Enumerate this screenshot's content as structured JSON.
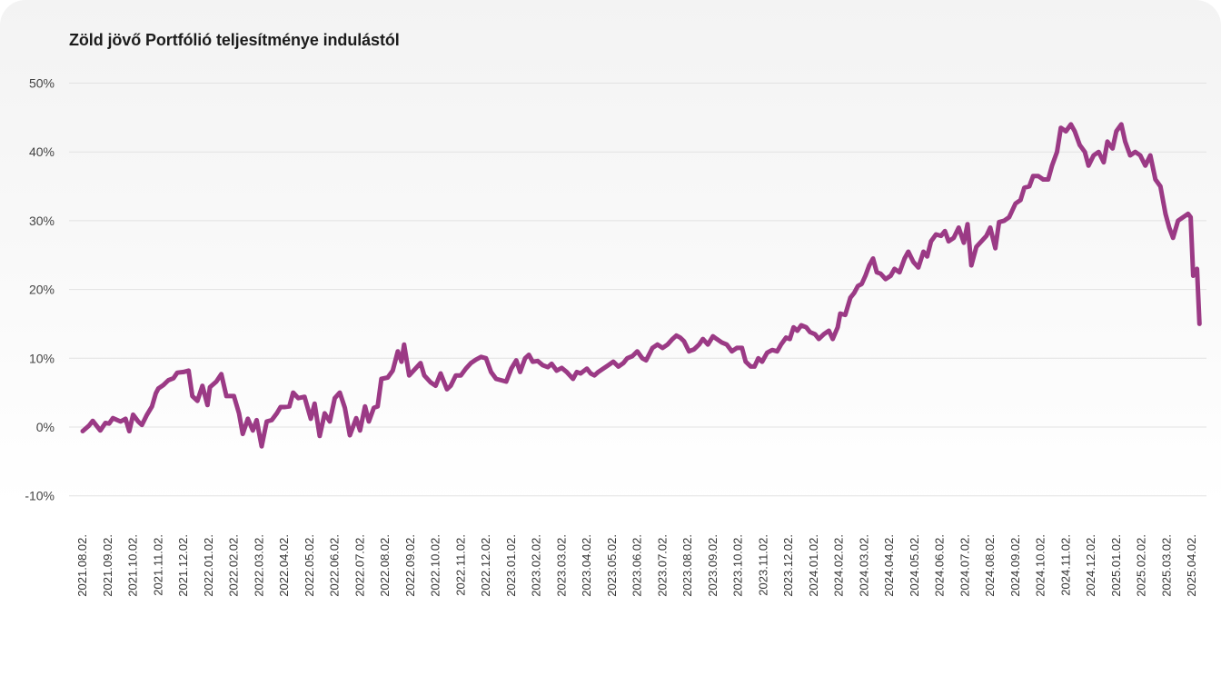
{
  "chart_data": {
    "type": "line",
    "title": "Zöld jövő Portfólió teljesítménye indulástól",
    "xlabel": "",
    "ylabel": "",
    "ylim": [
      -10,
      50
    ],
    "y_ticks": [
      "-10%",
      "0%",
      "10%",
      "20%",
      "30%",
      "40%",
      "50%"
    ],
    "y_tick_values": [
      -10,
      0,
      10,
      20,
      30,
      40,
      50
    ],
    "x_ticks": [
      "2021.08.02.",
      "2021.09.02.",
      "2021.10.02.",
      "2021.11.02.",
      "2021.12.02.",
      "2022.01.02.",
      "2022.02.02.",
      "2022.03.02.",
      "2022.04.02.",
      "2022.05.02.",
      "2022.06.02.",
      "2022.07.02.",
      "2022.08.02.",
      "2022.09.02.",
      "2022.10.02.",
      "2022.11.02.",
      "2022.12.02.",
      "2023.01.02.",
      "2023.02.02.",
      "2023.03.02.",
      "2023.04.02.",
      "2023.05.02.",
      "2023.06.02.",
      "2023.07.02.",
      "2023.08.02.",
      "2023.09.02.",
      "2023.10.02.",
      "2023.11.02.",
      "2023.12.02.",
      "2024.01.02.",
      "2024.02.02.",
      "2024.03.02.",
      "2024.04.02.",
      "2024.05.02.",
      "2024.06.02.",
      "2024.07.02.",
      "2024.08.02.",
      "2024.09.02.",
      "2024.10.02.",
      "2024.11.02.",
      "2024.12.02.",
      "2025.01.02.",
      "2025.02.02.",
      "2025.03.02.",
      "2025.04.02."
    ],
    "grid": true,
    "line_color": "#9b3a85",
    "series": [
      {
        "values": [
          [
            0.0,
            -0.6
          ],
          [
            0.25,
            0.2
          ],
          [
            0.4,
            0.9
          ],
          [
            0.7,
            -0.5
          ],
          [
            0.9,
            0.6
          ],
          [
            1.05,
            0.5
          ],
          [
            1.2,
            1.3
          ],
          [
            1.5,
            0.8
          ],
          [
            1.7,
            1.2
          ],
          [
            1.85,
            -0.6
          ],
          [
            2.0,
            1.8
          ],
          [
            2.2,
            0.8
          ],
          [
            2.35,
            0.3
          ],
          [
            2.55,
            1.8
          ],
          [
            2.75,
            3.0
          ],
          [
            2.9,
            4.9
          ],
          [
            3.0,
            5.6
          ],
          [
            3.2,
            6.1
          ],
          [
            3.4,
            6.8
          ],
          [
            3.6,
            7.1
          ],
          [
            3.75,
            7.9
          ],
          [
            4.0,
            8.0
          ],
          [
            4.2,
            8.2
          ],
          [
            4.35,
            4.5
          ],
          [
            4.55,
            3.8
          ],
          [
            4.75,
            6.0
          ],
          [
            4.95,
            3.2
          ],
          [
            5.05,
            5.8
          ],
          [
            5.3,
            6.6
          ],
          [
            5.5,
            7.7
          ],
          [
            5.7,
            4.5
          ],
          [
            6.0,
            4.5
          ],
          [
            6.2,
            2.0
          ],
          [
            6.35,
            -1.0
          ],
          [
            6.55,
            1.2
          ],
          [
            6.75,
            -0.5
          ],
          [
            6.9,
            1.0
          ],
          [
            7.1,
            -2.8
          ],
          [
            7.3,
            0.8
          ],
          [
            7.5,
            1.0
          ],
          [
            7.7,
            2.0
          ],
          [
            7.85,
            2.9
          ],
          [
            8.0,
            2.9
          ],
          [
            8.2,
            3.0
          ],
          [
            8.35,
            5.0
          ],
          [
            8.55,
            4.2
          ],
          [
            8.8,
            4.4
          ],
          [
            9.05,
            1.2
          ],
          [
            9.2,
            3.4
          ],
          [
            9.4,
            -1.3
          ],
          [
            9.6,
            2.0
          ],
          [
            9.8,
            0.8
          ],
          [
            10.0,
            4.2
          ],
          [
            10.2,
            5.0
          ],
          [
            10.4,
            2.8
          ],
          [
            10.6,
            -1.2
          ],
          [
            10.85,
            1.3
          ],
          [
            11.0,
            -0.5
          ],
          [
            11.2,
            3.0
          ],
          [
            11.35,
            0.8
          ],
          [
            11.55,
            2.8
          ],
          [
            11.7,
            3.0
          ],
          [
            11.85,
            7.0
          ],
          [
            12.1,
            7.2
          ],
          [
            12.3,
            8.2
          ],
          [
            12.5,
            11.0
          ],
          [
            12.65,
            9.5
          ],
          [
            12.75,
            12.0
          ],
          [
            12.95,
            7.5
          ],
          [
            13.2,
            8.5
          ],
          [
            13.4,
            9.3
          ],
          [
            13.55,
            7.5
          ],
          [
            13.8,
            6.5
          ],
          [
            14.0,
            6.0
          ],
          [
            14.2,
            7.8
          ],
          [
            14.45,
            5.5
          ],
          [
            14.6,
            6.0
          ],
          [
            14.8,
            7.5
          ],
          [
            15.0,
            7.5
          ],
          [
            15.2,
            8.5
          ],
          [
            15.4,
            9.3
          ],
          [
            15.6,
            9.8
          ],
          [
            15.8,
            10.2
          ],
          [
            16.0,
            10.0
          ],
          [
            16.2,
            8.0
          ],
          [
            16.4,
            7.0
          ],
          [
            16.6,
            6.8
          ],
          [
            16.8,
            6.6
          ],
          [
            17.0,
            8.5
          ],
          [
            17.2,
            9.7
          ],
          [
            17.35,
            8.0
          ],
          [
            17.55,
            10.0
          ],
          [
            17.7,
            10.5
          ],
          [
            17.85,
            9.5
          ],
          [
            18.05,
            9.6
          ],
          [
            18.25,
            9.0
          ],
          [
            18.45,
            8.7
          ],
          [
            18.6,
            9.2
          ],
          [
            18.8,
            8.2
          ],
          [
            19.0,
            8.6
          ],
          [
            19.2,
            8.0
          ],
          [
            19.45,
            7.0
          ],
          [
            19.6,
            8.0
          ],
          [
            19.75,
            7.8
          ],
          [
            20.0,
            8.5
          ],
          [
            20.15,
            7.8
          ],
          [
            20.3,
            7.5
          ],
          [
            20.45,
            8.0
          ],
          [
            20.65,
            8.5
          ],
          [
            20.85,
            9.0
          ],
          [
            21.05,
            9.5
          ],
          [
            21.25,
            8.8
          ],
          [
            21.45,
            9.3
          ],
          [
            21.6,
            10.0
          ],
          [
            21.8,
            10.3
          ],
          [
            22.0,
            11.0
          ],
          [
            22.2,
            10.0
          ],
          [
            22.35,
            9.7
          ],
          [
            22.6,
            11.5
          ],
          [
            22.8,
            12.0
          ],
          [
            23.0,
            11.5
          ],
          [
            23.2,
            12.0
          ],
          [
            23.4,
            12.8
          ],
          [
            23.55,
            13.3
          ],
          [
            23.7,
            13.0
          ],
          [
            23.85,
            12.5
          ],
          [
            24.05,
            11.0
          ],
          [
            24.25,
            11.3
          ],
          [
            24.45,
            12.0
          ],
          [
            24.6,
            12.8
          ],
          [
            24.8,
            12.0
          ],
          [
            25.0,
            13.2
          ],
          [
            25.15,
            12.8
          ],
          [
            25.35,
            12.3
          ],
          [
            25.55,
            12.0
          ],
          [
            25.75,
            11.0
          ],
          [
            25.95,
            11.5
          ],
          [
            26.15,
            11.5
          ],
          [
            26.3,
            9.5
          ],
          [
            26.5,
            8.8
          ],
          [
            26.65,
            8.8
          ],
          [
            26.8,
            10.0
          ],
          [
            26.95,
            9.5
          ],
          [
            27.15,
            10.8
          ],
          [
            27.35,
            11.2
          ],
          [
            27.55,
            11.0
          ],
          [
            27.7,
            12.0
          ],
          [
            27.9,
            13.0
          ],
          [
            28.05,
            12.8
          ],
          [
            28.2,
            14.5
          ],
          [
            28.35,
            14.0
          ],
          [
            28.5,
            14.8
          ],
          [
            28.7,
            14.5
          ],
          [
            28.85,
            13.8
          ],
          [
            29.05,
            13.5
          ],
          [
            29.2,
            12.8
          ],
          [
            29.4,
            13.5
          ],
          [
            29.6,
            14.0
          ],
          [
            29.75,
            12.8
          ],
          [
            29.95,
            14.5
          ],
          [
            30.05,
            16.5
          ],
          [
            30.25,
            16.3
          ],
          [
            30.45,
            18.8
          ],
          [
            30.6,
            19.5
          ],
          [
            30.75,
            20.5
          ],
          [
            30.9,
            20.8
          ],
          [
            31.05,
            22.0
          ],
          [
            31.2,
            23.5
          ],
          [
            31.35,
            24.5
          ],
          [
            31.5,
            22.5
          ],
          [
            31.65,
            22.3
          ],
          [
            31.85,
            21.5
          ],
          [
            32.05,
            22.0
          ],
          [
            32.2,
            23.0
          ],
          [
            32.4,
            22.5
          ],
          [
            32.6,
            24.5
          ],
          [
            32.75,
            25.5
          ],
          [
            32.95,
            24.0
          ],
          [
            33.15,
            23.2
          ],
          [
            33.35,
            25.5
          ],
          [
            33.5,
            24.8
          ],
          [
            33.65,
            27.0
          ],
          [
            33.85,
            28.0
          ],
          [
            34.05,
            27.8
          ],
          [
            34.2,
            28.5
          ],
          [
            34.35,
            27.0
          ],
          [
            34.55,
            27.5
          ],
          [
            34.75,
            29.0
          ],
          [
            34.95,
            26.8
          ],
          [
            35.1,
            29.5
          ],
          [
            35.25,
            23.5
          ],
          [
            35.45,
            26.2
          ],
          [
            35.65,
            27.0
          ],
          [
            35.85,
            27.8
          ],
          [
            36.0,
            29.0
          ],
          [
            36.2,
            26.0
          ],
          [
            36.35,
            29.8
          ],
          [
            36.55,
            30.0
          ],
          [
            36.75,
            30.5
          ],
          [
            37.0,
            32.5
          ],
          [
            37.2,
            33.0
          ],
          [
            37.35,
            34.8
          ],
          [
            37.55,
            35.0
          ],
          [
            37.7,
            36.5
          ],
          [
            37.9,
            36.5
          ],
          [
            38.1,
            36.0
          ],
          [
            38.3,
            36.0
          ],
          [
            38.45,
            38.0
          ],
          [
            38.65,
            40.0
          ],
          [
            38.8,
            43.5
          ],
          [
            39.0,
            43.0
          ],
          [
            39.2,
            44.0
          ],
          [
            39.35,
            43.0
          ],
          [
            39.55,
            41.0
          ],
          [
            39.75,
            40.0
          ],
          [
            39.9,
            38.0
          ],
          [
            40.1,
            39.5
          ],
          [
            40.3,
            40.0
          ],
          [
            40.5,
            38.5
          ],
          [
            40.65,
            41.5
          ],
          [
            40.85,
            40.5
          ],
          [
            41.0,
            43.0
          ],
          [
            41.2,
            44.0
          ],
          [
            41.35,
            41.5
          ],
          [
            41.55,
            39.5
          ],
          [
            41.75,
            40.0
          ],
          [
            41.95,
            39.5
          ],
          [
            42.15,
            38.0
          ],
          [
            42.35,
            39.5
          ],
          [
            42.55,
            36.0
          ],
          [
            42.75,
            35.0
          ],
          [
            42.95,
            31.0
          ],
          [
            43.1,
            29.0
          ],
          [
            43.25,
            27.5
          ],
          [
            43.45,
            30.0
          ],
          [
            43.65,
            30.5
          ],
          [
            43.85,
            31.0
          ],
          [
            43.95,
            30.5
          ],
          [
            44.05,
            22.0
          ],
          [
            44.2,
            23.0
          ],
          [
            44.3,
            15.0
          ]
        ]
      }
    ]
  }
}
